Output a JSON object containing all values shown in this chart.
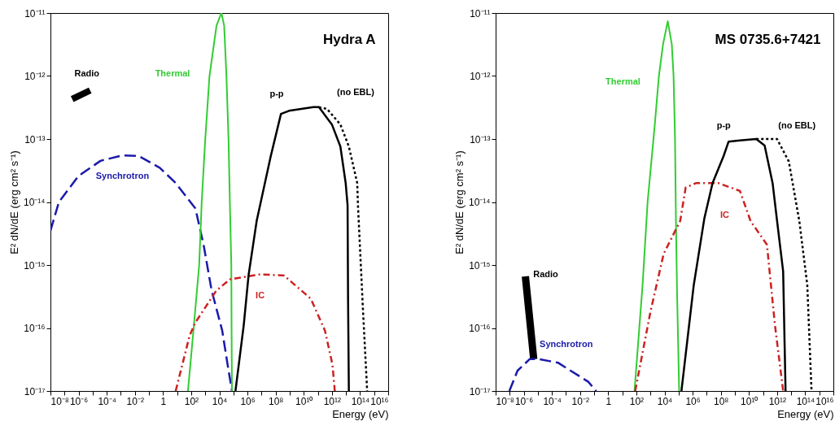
{
  "chart_data": [
    {
      "type": "line",
      "title": "Hydra A",
      "xlabel": "Energy (eV)",
      "ylabel": "E² dN/dE (erg cm² s⁻¹)",
      "log": "xy",
      "grid": false,
      "xlim": [
        1e-08,
        1e+16
      ],
      "xticks": [
        {
          "value": 1e-08,
          "label": "10⁻⁸"
        },
        {
          "value": 1e-07,
          "label": null
        },
        {
          "value": 1e-06,
          "label": "10⁻⁶"
        },
        {
          "value": 1e-05,
          "label": null
        },
        {
          "value": 0.0001,
          "label": "10⁻⁴"
        },
        {
          "value": 0.001,
          "label": null
        },
        {
          "value": 0.01,
          "label": "10⁻²"
        },
        {
          "value": 0.1,
          "label": null
        },
        1,
        {
          "value": 10.0,
          "label": null
        },
        {
          "value": 100.0,
          "label": "10²"
        },
        {
          "value": 1000.0,
          "label": null
        },
        {
          "value": 10000.0,
          "label": "10⁴"
        },
        {
          "value": 100000.0,
          "label": null
        },
        {
          "value": 1000000.0,
          "label": "10⁶"
        },
        {
          "value": 10000000.0,
          "label": null
        },
        {
          "value": 100000000.0,
          "label": "10⁸"
        },
        {
          "value": 1000000000.0,
          "label": null
        },
        {
          "value": 10000000000.0,
          "label": "10¹⁰"
        },
        {
          "value": 100000000000.0,
          "label": null
        },
        {
          "value": 1000000000000.0,
          "label": "10¹²"
        },
        {
          "value": 10000000000000.0,
          "label": null
        },
        {
          "value": 100000000000000.0,
          "label": "10¹⁴"
        },
        {
          "value": 1000000000000000.0,
          "label": null
        },
        {
          "value": 1e+16,
          "label": "10¹⁶"
        }
      ],
      "ylim": [
        1e-17,
        1e-11
      ],
      "yticks": [
        {
          "value": 1e-17,
          "label": "10⁻¹⁷"
        },
        {
          "value": 1e-16,
          "label": "10⁻¹⁶"
        },
        {
          "value": 1e-15,
          "label": "10⁻¹⁵"
        },
        {
          "value": 1e-14,
          "label": "10⁻¹⁴"
        },
        {
          "value": 1e-13,
          "label": "10⁻¹³"
        },
        {
          "value": 1e-12,
          "label": "10⁻¹²"
        },
        {
          "value": 1e-11,
          "label": "10⁻¹¹"
        }
      ],
      "series": [
        {
          "name": "Radio",
          "color": "#000000",
          "line_style": "solid",
          "x": [
            3.5e-07,
            6.6e-06
          ],
          "values": [
            4.3e-13,
            5.9e-13
          ]
        },
        {
          "name": "Synchrotron",
          "color": "#1a1aaa",
          "line_style": "dashed",
          "x": [
            1e-08,
            4e-08,
            1e-06,
            3.6e-05,
            0.0013,
            0.018,
            0.58,
            7.9,
            200.0,
            790.0,
            2800.0,
            16000.0,
            40000.0,
            79000.0
          ],
          "values": [
            3.5e-15,
            1e-14,
            2.6e-14,
            4.5e-14,
            5.5e-14,
            5.4e-14,
            3.5e-14,
            2e-14,
            7.9e-15,
            2e-15,
            4e-16,
            9.1e-17,
            2.5e-17,
            1e-17
          ]
        },
        {
          "name": "Thermal",
          "color": "#33cc33",
          "line_style": "solid",
          "x": [
            59,
            150,
            370,
            560,
            1000.0,
            2000.0,
            6300.0,
            14000.0,
            22000.0,
            32000.0,
            45000.0,
            56000.0,
            71000.0,
            74000.0,
            79000.0
          ],
          "values": [
            1e-17,
            1e-16,
            1e-15,
            1e-14,
            1e-13,
            1e-12,
            6.3e-12,
            1e-11,
            6.3e-12,
            1e-12,
            1e-13,
            1e-14,
            1e-15,
            1e-16,
            1e-17
          ]
        },
        {
          "name": "IC",
          "color": "#cc2222",
          "line_style": "dashdot",
          "x": [
            7.9,
            78,
            190,
            6000.0,
            56000.0,
            7900000.0,
            400000000.0,
            32000000000.0,
            320000000000.0,
            1100000000000.0,
            1600000000000.0
          ],
          "values": [
            1e-17,
            7.6e-17,
            1.2e-16,
            3.9e-16,
            5.9e-16,
            7.1e-16,
            6.8e-16,
            2.9e-16,
            9.1e-17,
            2.6e-17,
            1e-17
          ]
        },
        {
          "name": "(no EBL)",
          "color": "#000000",
          "line_style": "dotted",
          "x": [
            120000000000.0,
            450000000000.0,
            4000000000000.0,
            16000000000000.0,
            63000000000000.0,
            71000000000000.0,
            160000000000000.0,
            320000000000000.0
          ],
          "values": [
            3.2e-13,
            3e-13,
            1.7e-13,
            7.6e-14,
            2e-14,
            8.9e-15,
            2e-16,
            1e-17
          ]
        },
        {
          "name": "p-p",
          "color": "#000000",
          "line_style": "solid",
          "x": [
            140000.0,
            540000.0,
            1200000.0,
            4500000.0,
            43000000.0,
            240000000.0,
            890000000.0,
            48000000000.0,
            120000000000.0,
            1000000000000.0,
            4000000000000.0,
            9500000000000.0,
            13000000000000.0,
            14000000000000.0,
            16000000000000.0
          ],
          "values": [
            1e-17,
            1.1e-16,
            6.9e-16,
            5e-15,
            5.1e-14,
            2.5e-13,
            2.8e-13,
            3.2e-13,
            3.2e-13,
            1.7e-13,
            7.6e-14,
            2e-14,
            8.9e-15,
            3.2e-16,
            1e-17
          ]
        }
      ]
    },
    {
      "type": "line",
      "title": "MS 0735.6+7421",
      "xlabel": "Energy (eV)",
      "ylabel": "E² dN/dE (erg cm² s⁻¹)",
      "log": "xy",
      "grid": false,
      "xlim": [
        1e-08,
        1e+16
      ],
      "xticks": [
        {
          "value": 1e-08,
          "label": "10⁻⁸"
        },
        {
          "value": 1e-07,
          "label": null
        },
        {
          "value": 1e-06,
          "label": "10⁻⁶"
        },
        {
          "value": 1e-05,
          "label": null
        },
        {
          "value": 0.0001,
          "label": "10⁻⁴"
        },
        {
          "value": 0.001,
          "label": null
        },
        {
          "value": 0.01,
          "label": "10⁻²"
        },
        {
          "value": 0.1,
          "label": null
        },
        1,
        {
          "value": 10.0,
          "label": null
        },
        {
          "value": 100.0,
          "label": "10²"
        },
        {
          "value": 1000.0,
          "label": null
        },
        {
          "value": 10000.0,
          "label": "10⁴"
        },
        {
          "value": 100000.0,
          "label": null
        },
        {
          "value": 1000000.0,
          "label": "10⁶"
        },
        {
          "value": 10000000.0,
          "label": null
        },
        {
          "value": 100000000.0,
          "label": "10⁸"
        },
        {
          "value": 1000000000.0,
          "label": null
        },
        {
          "value": 10000000000.0,
          "label": "10¹⁰"
        },
        {
          "value": 100000000000.0,
          "label": null
        },
        {
          "value": 1000000000000.0,
          "label": "10¹²"
        },
        {
          "value": 10000000000000.0,
          "label": null
        },
        {
          "value": 100000000000000.0,
          "label": "10¹⁴"
        },
        {
          "value": 1000000000000000.0,
          "label": null
        },
        {
          "value": 1e+16,
          "label": "10¹⁶"
        }
      ],
      "ylim": [
        1e-17,
        1e-11
      ],
      "yticks": [
        {
          "value": 1e-17,
          "label": "10⁻¹⁷"
        },
        {
          "value": 1e-16,
          "label": "10⁻¹⁶"
        },
        {
          "value": 1e-15,
          "label": "10⁻¹⁵"
        },
        {
          "value": 1e-14,
          "label": "10⁻¹⁴"
        },
        {
          "value": 1e-13,
          "label": "10⁻¹³"
        },
        {
          "value": 1e-12,
          "label": "10⁻¹²"
        },
        {
          "value": 1e-11,
          "label": "10⁻¹¹"
        }
      ],
      "series": [
        {
          "name": "Radio",
          "color": "#000000",
          "line_style": "solid",
          "x": [
            1.3e-06,
            5.1e-06
          ],
          "values": [
            6.6e-16,
            3.2e-17
          ]
        },
        {
          "name": "Synchrotron",
          "color": "#1a1aaa",
          "line_style": "dashed",
          "x": [
            9.5e-08,
            3.6e-07,
            2.6e-06,
            1.3e-05,
            0.00028,
            0.038,
            0.14
          ],
          "values": [
            1e-17,
            2.1e-17,
            3.2e-17,
            3.2e-17,
            2.8e-17,
            1.4e-17,
            1e-17
          ]
        },
        {
          "name": "Thermal",
          "color": "#33cc33",
          "line_style": "solid",
          "x": [
            74,
            280,
            630,
            2000.0,
            4000.0,
            7900.0,
            17000.0,
            33000.0,
            44000.0,
            56000.0,
            65000.0,
            79000.0,
            110000.0
          ],
          "values": [
            1e-17,
            5e-16,
            1e-14,
            1.6e-13,
            1e-12,
            3.2e-12,
            7.4e-12,
            3.2e-12,
            1e-12,
            1e-13,
            5e-15,
            3.2e-16,
            1e-17
          ]
        },
        {
          "name": "IC",
          "color": "#cc2222",
          "line_style": "dashdot",
          "x": [
            83,
            1000.0,
            8700.0,
            130000.0,
            320000.0,
            1800000.0,
            65000000.0,
            2300000000.0,
            13000000000.0,
            190000000000.0,
            710000000000.0,
            2700000000000.0
          ],
          "values": [
            1e-17,
            1.8e-16,
            1.5e-15,
            5e-15,
            1.7e-14,
            2e-14,
            2e-14,
            1.5e-14,
            5e-15,
            2.1e-15,
            1.1e-16,
            1e-17
          ]
        },
        {
          "name": "(no EBL)",
          "color": "#000000",
          "line_style": "dotted",
          "x": [
            33000000000.0,
            1000000000000.0,
            6800000000000.0,
            38000000000000.0,
            140000000000000.0,
            280000000000000.0
          ],
          "values": [
            1e-13,
            1e-13,
            4.4e-14,
            5e-15,
            4.8e-16,
            1e-17
          ]
        },
        {
          "name": "p-p",
          "color": "#000000",
          "line_style": "solid",
          "x": [
            160000.0,
            1200000.0,
            6800000.0,
            26000000.0,
            160000000.0,
            360000000.0,
            2300000000.0,
            33000000000.0,
            130000000000.0,
            480000000000.0,
            1000000000000.0,
            2700000000000.0,
            4000000000000.0
          ],
          "values": [
            1e-17,
            4.8e-16,
            5.5e-15,
            2e-14,
            5.4e-14,
            9.1e-14,
            9.5e-14,
            1e-13,
            7.9e-14,
            2e-14,
            5e-15,
            7.9e-16,
            1e-17
          ]
        }
      ]
    }
  ]
}
